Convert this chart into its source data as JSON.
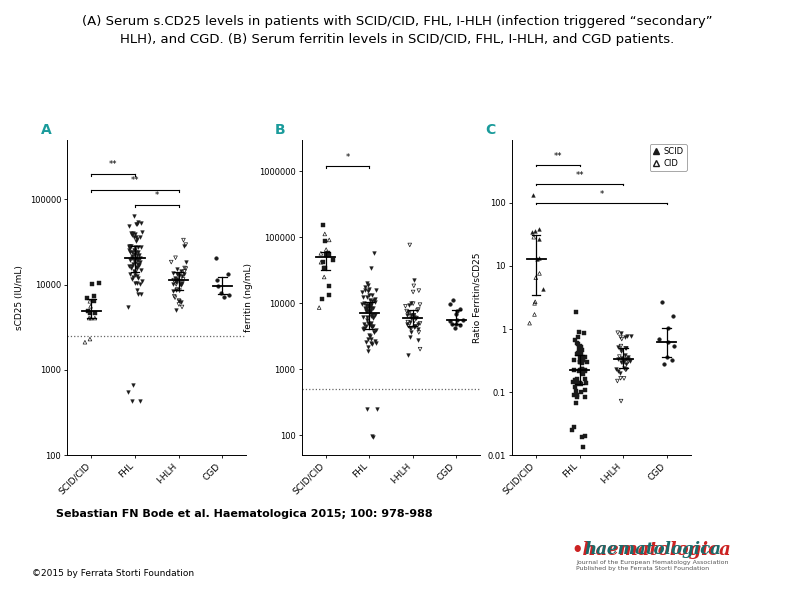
{
  "title_line1": "(A) Serum s.CD25 levels in patients with SCID/CID, FHL, I-HLH (infection triggered “secondary”",
  "title_line2": "HLH), and CGD. (B) Serum ferritin levels in SCID/CID, FHL, I-HLH, and CGD patients.",
  "title_fontsize": 9.5,
  "panel_label_color": "#1a9b9b",
  "categories": [
    "SCID/CID",
    "FHL",
    "I-HLH",
    "CGD"
  ],
  "xlabel_fontsize": 6.5,
  "ylabel_A": "sCD25 (IU/mL)",
  "ylabel_B": "ferritin (ng/mL)",
  "ylabel_C": "Ratio Ferritin/sCD25",
  "ylabel_fontsize": 6.5,
  "dotted_line_A": 2500,
  "dotted_line_B": 500,
  "panel_A_ylim": [
    100,
    500000
  ],
  "panel_B_ylim": [
    50,
    3000000
  ],
  "panel_C_ylim": [
    0.01,
    1000
  ],
  "footer_text": "Sebastian FN Bode et al. Haematologica 2015; 100: 978-988",
  "footer_fontsize": 8,
  "copyright_text": "©2015 by Ferrata Storti Foundation",
  "copyright_fontsize": 6.5,
  "background_color": "#ffffff",
  "dot_color": "#1a1a1a",
  "panel_A_yticks": [
    100,
    1000,
    10000,
    100000
  ],
  "panel_A_yticklabels": [
    "100",
    "1000",
    "10000",
    "100000"
  ],
  "panel_B_yticks": [
    100,
    1000,
    10000,
    100000,
    1000000
  ],
  "panel_B_yticklabels": [
    "100",
    "1000",
    "10000",
    "100000",
    "1000000"
  ],
  "panel_C_yticks": [
    0.01,
    0.1,
    1,
    10,
    100
  ],
  "panel_C_yticklabels": [
    "0.01",
    "0.1",
    "1",
    "10",
    "100"
  ]
}
